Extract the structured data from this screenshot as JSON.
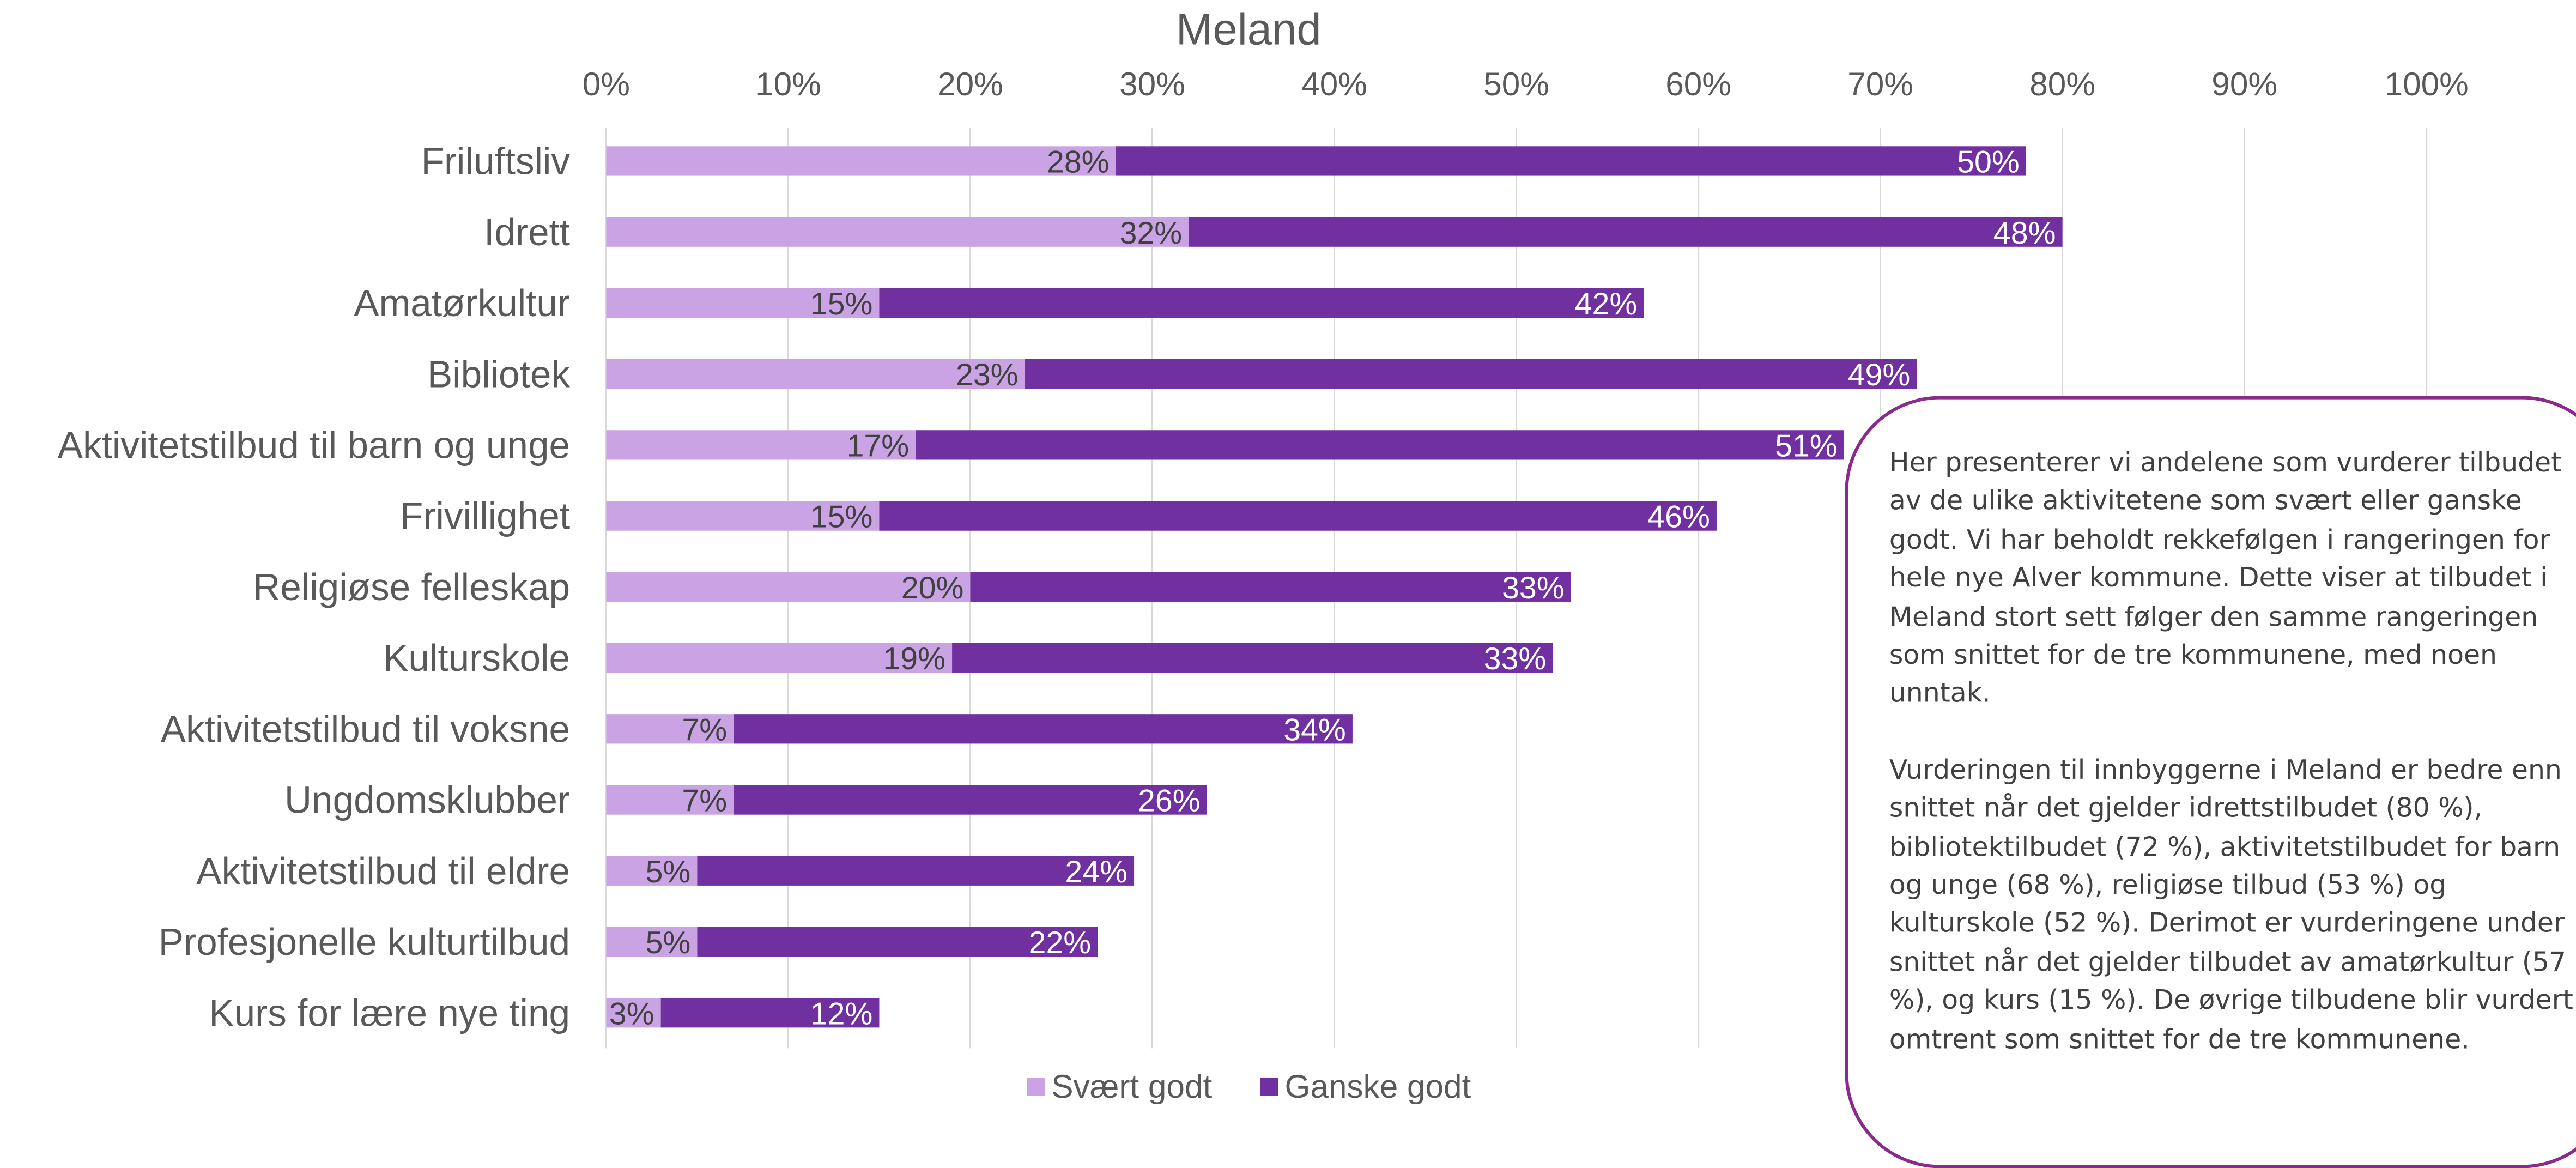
{
  "chart_data": {
    "type": "bar",
    "stacked": true,
    "orientation": "horizontal",
    "title": "Meland",
    "categories": [
      "Friluftsliv",
      "Idrett",
      "Amatørkultur",
      "Bibliotek",
      "Aktivitetstilbud til barn og unge",
      "Frivillighet",
      "Religiøse felleskap",
      "Kulturskole",
      "Aktivitetstilbud til voksne",
      "Ungdomsklubber",
      "Aktivitetstilbud til eldre",
      "Profesjonelle kulturtilbud",
      "Kurs for lære nye ting"
    ],
    "series": [
      {
        "name": "Svært godt",
        "values": [
          28,
          32,
          15,
          23,
          17,
          15,
          20,
          19,
          7,
          7,
          5,
          5,
          3
        ],
        "color": "#c9a3e3"
      },
      {
        "name": "Ganske godt",
        "values": [
          50,
          48,
          42,
          49,
          51,
          46,
          33,
          33,
          34,
          26,
          24,
          22,
          12
        ],
        "color": "#7030a0"
      }
    ],
    "x_ticks": [
      "0%",
      "10%",
      "20%",
      "30%",
      "40%",
      "50%",
      "60%",
      "70%",
      "80%",
      "90%",
      "100%"
    ],
    "xlim": [
      0,
      100
    ],
    "x_axis_position": "top",
    "grid": true,
    "legend_position": "bottom",
    "data_labels": true,
    "data_label_suffix": "%"
  },
  "callout": {
    "paragraphs": [
      "Her presenterer vi andelene som vurderer tilbudet av de ulike aktivitetene som svært eller ganske godt. Vi har beholdt rekkefølgen i rangeringen for hele nye Alver kommune. Dette viser at tilbudet i Meland stort sett følger den samme rangeringen som snittet for de tre kommunene, med noen unntak.",
      "Vurderingen til innbyggerne i Meland er bedre enn snittet når det gjelder idrettstilbudet (80 %), bibliotektilbudet (72 %), aktivitetstilbudet for barn og unge (68 %), religiøse tilbud (53 %) og kulturskole (52 %). Derimot er vurderingene under snittet når det gjelder tilbudet av amatørkultur (57 %), og kurs (15 %). De øvrige tilbudene blir vurdert omtrent som snittet for de tre kommunene."
    ],
    "border_color": "#8a2a8c"
  },
  "colors": {
    "text": "#595959",
    "gridline": "#d9d9d9",
    "bar_label_light": "#404040",
    "bar_label_dark": "#ffffff"
  }
}
